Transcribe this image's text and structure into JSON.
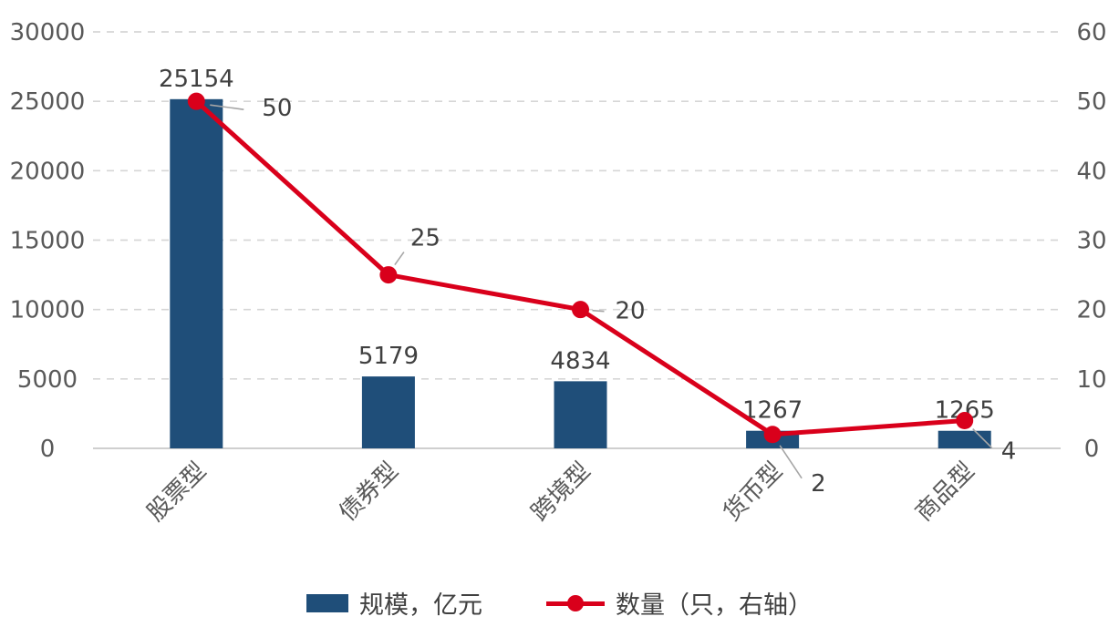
{
  "chart_data": {
    "type": "bar",
    "subtype": "combo-bar-line-dual-axis",
    "title": "",
    "categories": [
      "股票型",
      "债券型",
      "跨境型",
      "货币型",
      "商品型"
    ],
    "series": [
      {
        "name": "规模，亿元",
        "type": "bar",
        "axis": "left",
        "color": "#1F4E79",
        "values": [
          25154,
          5179,
          4834,
          1267,
          1265
        ]
      },
      {
        "name": "数量（只，右轴）",
        "type": "line",
        "axis": "right",
        "color": "#D9001B",
        "values": [
          50,
          25,
          20,
          2,
          4
        ]
      }
    ],
    "left_axis": {
      "min": 0,
      "max": 30000,
      "ticks": [
        0,
        5000,
        10000,
        15000,
        20000,
        25000,
        30000
      ]
    },
    "right_axis": {
      "min": 0,
      "max": 60,
      "ticks": [
        0,
        10,
        20,
        30,
        40,
        50,
        60
      ]
    },
    "grid": "horizontal-dashed",
    "grid_color": "#D6D6D6",
    "axis_line_color": "#BFBFBF",
    "label_color": "#404040",
    "tick_color": "#595959",
    "leader_line_color": "#A6A6A6",
    "legend_position": "bottom"
  }
}
